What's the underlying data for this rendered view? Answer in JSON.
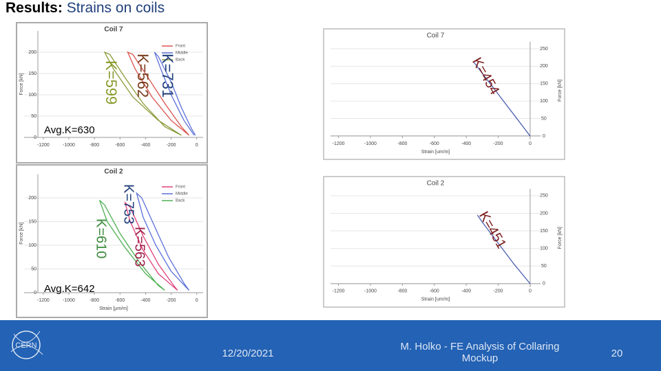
{
  "header": {
    "title_bold": "Results:",
    "title_rest": "Strains on coils"
  },
  "panels": [
    {
      "type": "line",
      "title": "Coil 7",
      "y_label": "Force [kN]",
      "y_axis_side": "left",
      "grid": true,
      "xlim": [
        -1350,
        50
      ],
      "xticks": [
        -1200,
        -1000,
        -800,
        -600,
        -400,
        -200,
        0
      ],
      "ylim": [
        0,
        250
      ],
      "yticks": [
        0,
        50,
        100,
        150,
        200
      ],
      "series": [
        {
          "name": "Front",
          "color": "#d9534f",
          "x": [
            -60,
            -200,
            -350,
            -480,
            -540,
            -500,
            -380,
            -250,
            -120,
            -60
          ],
          "y": [
            5,
            40,
            95,
            160,
            200,
            195,
            140,
            80,
            25,
            5
          ]
        },
        {
          "name": "Middle",
          "color": "#5a6fd8",
          "x": [
            -20,
            -100,
            -200,
            -280,
            -330,
            -300,
            -200,
            -120,
            -40,
            -10
          ],
          "y": [
            5,
            40,
            100,
            160,
            200,
            190,
            130,
            70,
            20,
            5
          ]
        },
        {
          "name": "Back",
          "color": "#8a9a3a",
          "x": [
            -120,
            -300,
            -500,
            -650,
            -720,
            -680,
            -560,
            -420,
            -250,
            -120
          ],
          "y": [
            5,
            40,
            95,
            160,
            200,
            195,
            140,
            80,
            25,
            5
          ]
        }
      ],
      "annotations": [
        {
          "text": "K=731",
          "color": "#1f3f7a"
        },
        {
          "text": "K=562",
          "color": "#7a3b1a"
        },
        {
          "text": "K=599",
          "color": "#8a9a2a"
        },
        {
          "text": "Avg.K=630",
          "color": "#000000"
        }
      ]
    },
    {
      "type": "line",
      "title": "Coil 7",
      "x_label": "Strain [um/m]",
      "y_label": "Force [kN]",
      "y_axis_side": "right",
      "grid": true,
      "xlim": [
        -1250,
        65
      ],
      "xticks": [
        -1200,
        -1000,
        -800,
        -600,
        -400,
        -200,
        0
      ],
      "ylim": [
        -10,
        270
      ],
      "yticks": [
        0,
        50,
        100,
        150,
        200,
        250
      ],
      "series": [
        {
          "color": "#4a5fb0",
          "x": [
            0,
            -100,
            -200,
            -300,
            -350
          ],
          "y": [
            0,
            60,
            120,
            180,
            210
          ]
        }
      ],
      "annotations": [
        {
          "text": "K=454",
          "color": "#7a1a1a"
        }
      ]
    },
    {
      "type": "line",
      "title": "Coil 2",
      "x_label": "Strain [µm/m]",
      "y_label": "Force [kN]",
      "y_axis_side": "left",
      "grid": true,
      "xlim": [
        -1350,
        50
      ],
      "xticks": [
        -1200,
        -1000,
        -800,
        -600,
        -400,
        -200,
        0
      ],
      "ylim": [
        0,
        250
      ],
      "yticks": [
        0,
        50,
        100,
        150,
        200
      ],
      "series": [
        {
          "name": "Front",
          "color": "#e0407a",
          "x": [
            -150,
            -300,
            -420,
            -520,
            -560,
            -520,
            -420,
            -300,
            -180,
            -150
          ],
          "y": [
            5,
            40,
            90,
            150,
            190,
            180,
            120,
            60,
            15,
            5
          ]
        },
        {
          "name": "Middle",
          "color": "#5a6fd8",
          "x": [
            -60,
            -200,
            -320,
            -420,
            -470,
            -430,
            -330,
            -220,
            -100,
            -60
          ],
          "y": [
            5,
            45,
            100,
            160,
            210,
            200,
            140,
            75,
            20,
            5
          ]
        },
        {
          "name": "Back",
          "color": "#4caf50",
          "x": [
            -250,
            -400,
            -560,
            -700,
            -760,
            -720,
            -600,
            -450,
            -300,
            -250
          ],
          "y": [
            5,
            40,
            95,
            150,
            195,
            185,
            125,
            65,
            15,
            5
          ]
        }
      ],
      "annotations": [
        {
          "text": "K=753",
          "color": "#1f3f7a"
        },
        {
          "text": "K=610",
          "color": "#3a8a3a"
        },
        {
          "text": "K=563",
          "color": "#a0204a"
        },
        {
          "text": "Avg.K=642",
          "color": "#000000"
        }
      ]
    },
    {
      "type": "line",
      "title": "Coil 2",
      "x_label": "Strain [um/m]",
      "y_label": "Force [kN]",
      "y_axis_side": "right",
      "grid": true,
      "xlim": [
        -1250,
        65
      ],
      "xticks": [
        -1200,
        -1000,
        -800,
        -600,
        -400,
        -200,
        0
      ],
      "ylim": [
        -10,
        270
      ],
      "yticks": [
        0,
        50,
        100,
        150,
        200,
        250
      ],
      "series": [
        {
          "color": "#4a5fb0",
          "x": [
            0,
            -100,
            -200,
            -300,
            -330
          ],
          "y": [
            0,
            55,
            115,
            175,
            195
          ]
        }
      ],
      "annotations": [
        {
          "text": "K=451",
          "color": "#7a1a1a"
        }
      ]
    }
  ],
  "footer": {
    "logo": "CERN",
    "date": "12/20/2021",
    "author": "M. Holko - FE Analysis of Collaring Mockup",
    "page": "20"
  }
}
